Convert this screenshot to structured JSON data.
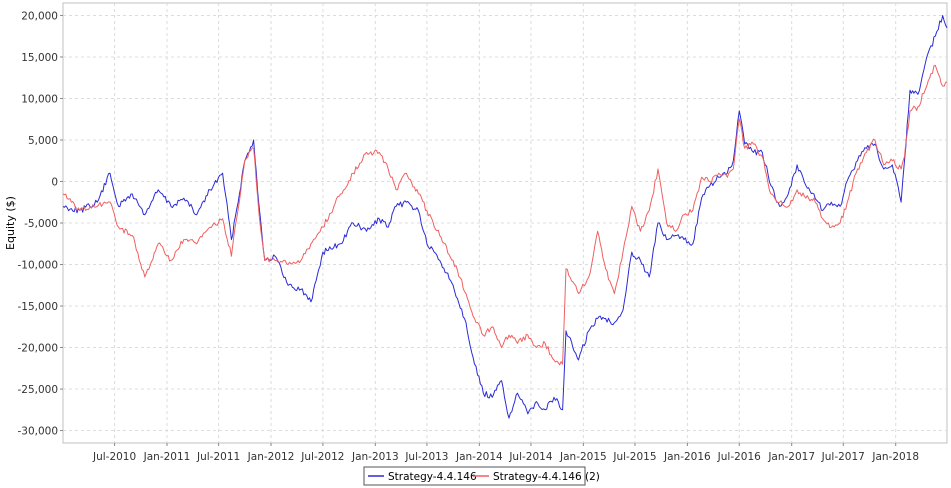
{
  "chart_data": {
    "type": "line",
    "title": "",
    "xlabel": "",
    "ylabel": "Equity ($)",
    "xlim": [
      "2010-01-01",
      "2018-06-30"
    ],
    "ylim": [
      -31500,
      21500
    ],
    "grid": true,
    "legend_position": "bottom-center",
    "y_ticks": [
      {
        "value": 20000,
        "label": "20,000"
      },
      {
        "value": 15000,
        "label": "15,000"
      },
      {
        "value": 10000,
        "label": "10,000"
      },
      {
        "value": 5000,
        "label": "5,000"
      },
      {
        "value": 0,
        "label": "0"
      },
      {
        "value": -5000,
        "label": "-5,000"
      },
      {
        "value": -10000,
        "label": "-10,000"
      },
      {
        "value": -15000,
        "label": "-15,000"
      },
      {
        "value": -20000,
        "label": "-20,000"
      },
      {
        "value": -25000,
        "label": "-25,000"
      },
      {
        "value": -30000,
        "label": "-30,000"
      }
    ],
    "x_ticks": [
      {
        "date": "2010-07-01",
        "label": "Jul-2010"
      },
      {
        "date": "2011-01-01",
        "label": "Jan-2011"
      },
      {
        "date": "2011-07-01",
        "label": "Jul-2011"
      },
      {
        "date": "2012-01-01",
        "label": "Jan-2012"
      },
      {
        "date": "2012-07-01",
        "label": "Jul-2012"
      },
      {
        "date": "2013-01-01",
        "label": "Jan-2013"
      },
      {
        "date": "2013-07-01",
        "label": "Jul-2013"
      },
      {
        "date": "2014-01-01",
        "label": "Jan-2014"
      },
      {
        "date": "2014-07-01",
        "label": "Jul-2014"
      },
      {
        "date": "2015-01-01",
        "label": "Jan-2015"
      },
      {
        "date": "2015-07-01",
        "label": "Jul-2015"
      },
      {
        "date": "2016-01-01",
        "label": "Jan-2016"
      },
      {
        "date": "2016-07-01",
        "label": "Jul-2016"
      },
      {
        "date": "2017-01-01",
        "label": "Jan-2017"
      },
      {
        "date": "2017-07-01",
        "label": "Jul-2017"
      },
      {
        "date": "2018-01-01",
        "label": "Jan-2018"
      }
    ],
    "series": [
      {
        "name": "Strategy-4.4.146",
        "color": "#2b2bd6",
        "points": [
          [
            "2010-01-01",
            -3000
          ],
          [
            "2010-03-01",
            -3500
          ],
          [
            "2010-05-01",
            -2500
          ],
          [
            "2010-06-15",
            1000
          ],
          [
            "2010-07-15",
            -3000
          ],
          [
            "2010-09-01",
            -1500
          ],
          [
            "2010-10-15",
            -4000
          ],
          [
            "2010-12-01",
            -1000
          ],
          [
            "2011-01-15",
            -3000
          ],
          [
            "2011-03-01",
            -2000
          ],
          [
            "2011-04-15",
            -4000
          ],
          [
            "2011-06-01",
            -1000
          ],
          [
            "2011-07-15",
            1000
          ],
          [
            "2011-08-15",
            -7000
          ],
          [
            "2011-10-01",
            2500
          ],
          [
            "2011-11-01",
            5000
          ],
          [
            "2011-11-20",
            -3000
          ],
          [
            "2011-12-10",
            -9500
          ],
          [
            "2012-01-15",
            -9000
          ],
          [
            "2012-03-01",
            -12500
          ],
          [
            "2012-04-15",
            -13000
          ],
          [
            "2012-05-20",
            -14500
          ],
          [
            "2012-07-01",
            -8500
          ],
          [
            "2012-09-01",
            -7500
          ],
          [
            "2012-10-15",
            -5000
          ],
          [
            "2012-12-01",
            -6000
          ],
          [
            "2013-01-15",
            -4500
          ],
          [
            "2013-02-15",
            -5500
          ],
          [
            "2013-03-15",
            -3000
          ],
          [
            "2013-04-20",
            -2500
          ],
          [
            "2013-06-01",
            -3500
          ],
          [
            "2013-07-01",
            -7500
          ],
          [
            "2013-08-15",
            -9500
          ],
          [
            "2013-10-01",
            -12500
          ],
          [
            "2013-11-15",
            -17000
          ],
          [
            "2013-12-15",
            -22000
          ],
          [
            "2014-01-15",
            -25500
          ],
          [
            "2014-02-15",
            -26000
          ],
          [
            "2014-03-20",
            -24000
          ],
          [
            "2014-04-15",
            -28500
          ],
          [
            "2014-05-15",
            -25500
          ],
          [
            "2014-06-20",
            -28000
          ],
          [
            "2014-07-20",
            -26500
          ],
          [
            "2014-08-20",
            -27500
          ],
          [
            "2014-09-20",
            -26000
          ],
          [
            "2014-10-20",
            -27500
          ],
          [
            "2014-11-01",
            -18000
          ],
          [
            "2014-12-15",
            -21500
          ],
          [
            "2015-01-20",
            -18000
          ],
          [
            "2015-02-20",
            -16500
          ],
          [
            "2015-03-20",
            -16500
          ],
          [
            "2015-04-20",
            -17000
          ],
          [
            "2015-05-20",
            -15500
          ],
          [
            "2015-06-20",
            -8500
          ],
          [
            "2015-07-20",
            -9500
          ],
          [
            "2015-08-20",
            -11500
          ],
          [
            "2015-09-20",
            -5000
          ],
          [
            "2015-10-20",
            -7000
          ],
          [
            "2015-11-20",
            -6500
          ],
          [
            "2015-12-20",
            -7000
          ],
          [
            "2016-01-20",
            -7500
          ],
          [
            "2016-02-20",
            -2000
          ],
          [
            "2016-03-20",
            -500
          ],
          [
            "2016-04-20",
            500
          ],
          [
            "2016-05-20",
            1000
          ],
          [
            "2016-06-10",
            2500
          ],
          [
            "2016-07-01",
            8500
          ],
          [
            "2016-07-20",
            4500
          ],
          [
            "2016-08-20",
            3500
          ],
          [
            "2016-09-20",
            3500
          ],
          [
            "2016-10-20",
            -500
          ],
          [
            "2016-11-20",
            -3000
          ],
          [
            "2016-12-20",
            -1500
          ],
          [
            "2017-01-20",
            2000
          ],
          [
            "2017-02-20",
            -500
          ],
          [
            "2017-03-20",
            -1500
          ],
          [
            "2017-04-20",
            -3500
          ],
          [
            "2017-05-20",
            -2500
          ],
          [
            "2017-06-20",
            -3000
          ],
          [
            "2017-07-20",
            500
          ],
          [
            "2017-08-20",
            2500
          ],
          [
            "2017-09-20",
            4000
          ],
          [
            "2017-10-20",
            4500
          ],
          [
            "2017-11-20",
            1500
          ],
          [
            "2017-12-20",
            2000
          ],
          [
            "2018-01-20",
            -2500
          ],
          [
            "2018-02-01",
            2500
          ],
          [
            "2018-02-20",
            11000
          ],
          [
            "2018-03-20",
            10500
          ],
          [
            "2018-04-20",
            15000
          ],
          [
            "2018-05-20",
            17500
          ],
          [
            "2018-06-15",
            20000
          ],
          [
            "2018-06-30",
            18500
          ]
        ]
      },
      {
        "name": "Strategy-4.4.146 (2)",
        "color": "#f06060",
        "points": [
          [
            "2010-01-01",
            -1500
          ],
          [
            "2010-03-01",
            -3500
          ],
          [
            "2010-05-01",
            -3000
          ],
          [
            "2010-06-15",
            -2500
          ],
          [
            "2010-07-15",
            -5500
          ],
          [
            "2010-09-01",
            -6500
          ],
          [
            "2010-10-15",
            -11500
          ],
          [
            "2010-12-01",
            -7500
          ],
          [
            "2011-01-15",
            -9500
          ],
          [
            "2011-03-01",
            -7000
          ],
          [
            "2011-04-15",
            -7500
          ],
          [
            "2011-06-01",
            -5500
          ],
          [
            "2011-07-15",
            -4500
          ],
          [
            "2011-08-15",
            -9000
          ],
          [
            "2011-10-01",
            2500
          ],
          [
            "2011-11-01",
            4000
          ],
          [
            "2011-11-20",
            -4000
          ],
          [
            "2011-12-10",
            -9500
          ],
          [
            "2012-01-15",
            -9500
          ],
          [
            "2012-03-01",
            -10000
          ],
          [
            "2012-04-15",
            -9500
          ],
          [
            "2012-05-20",
            -7500
          ],
          [
            "2012-07-01",
            -5500
          ],
          [
            "2012-09-01",
            -1500
          ],
          [
            "2012-10-15",
            1000
          ],
          [
            "2012-12-01",
            3500
          ],
          [
            "2013-01-15",
            3500
          ],
          [
            "2013-02-15",
            1500
          ],
          [
            "2013-03-15",
            -1000
          ],
          [
            "2013-04-20",
            1000
          ],
          [
            "2013-06-01",
            -1500
          ],
          [
            "2013-07-01",
            -3500
          ],
          [
            "2013-08-15",
            -6500
          ],
          [
            "2013-10-01",
            -9500
          ],
          [
            "2013-11-15",
            -13500
          ],
          [
            "2013-12-15",
            -16500
          ],
          [
            "2014-01-15",
            -18500
          ],
          [
            "2014-02-15",
            -17500
          ],
          [
            "2014-03-20",
            -20000
          ],
          [
            "2014-04-15",
            -18500
          ],
          [
            "2014-05-15",
            -19500
          ],
          [
            "2014-06-20",
            -18500
          ],
          [
            "2014-07-20",
            -20000
          ],
          [
            "2014-08-20",
            -19500
          ],
          [
            "2014-09-20",
            -21500
          ],
          [
            "2014-10-20",
            -22000
          ],
          [
            "2014-11-01",
            -10500
          ],
          [
            "2014-12-15",
            -13500
          ],
          [
            "2015-01-20",
            -11500
          ],
          [
            "2015-02-20",
            -6000
          ],
          [
            "2015-03-20",
            -10500
          ],
          [
            "2015-04-20",
            -13500
          ],
          [
            "2015-05-20",
            -8500
          ],
          [
            "2015-06-20",
            -3000
          ],
          [
            "2015-07-20",
            -6000
          ],
          [
            "2015-08-20",
            -3500
          ],
          [
            "2015-09-20",
            1500
          ],
          [
            "2015-10-20",
            -5000
          ],
          [
            "2015-11-20",
            -6000
          ],
          [
            "2015-12-20",
            -4000
          ],
          [
            "2016-01-20",
            -3500
          ],
          [
            "2016-02-20",
            500
          ],
          [
            "2016-03-20",
            0
          ],
          [
            "2016-04-20",
            1000
          ],
          [
            "2016-05-20",
            500
          ],
          [
            "2016-06-10",
            1500
          ],
          [
            "2016-07-01",
            7500
          ],
          [
            "2016-07-20",
            4000
          ],
          [
            "2016-08-20",
            4500
          ],
          [
            "2016-09-20",
            3000
          ],
          [
            "2016-10-20",
            -1500
          ],
          [
            "2016-11-20",
            -2500
          ],
          [
            "2016-12-20",
            -3000
          ],
          [
            "2017-01-20",
            -1000
          ],
          [
            "2017-02-20",
            -2000
          ],
          [
            "2017-03-20",
            -2000
          ],
          [
            "2017-04-20",
            -4500
          ],
          [
            "2017-05-20",
            -5500
          ],
          [
            "2017-06-20",
            -5000
          ],
          [
            "2017-07-20",
            -2000
          ],
          [
            "2017-08-20",
            1500
          ],
          [
            "2017-09-20",
            3500
          ],
          [
            "2017-10-20",
            5000
          ],
          [
            "2017-11-20",
            2000
          ],
          [
            "2017-12-20",
            2500
          ],
          [
            "2018-01-20",
            1500
          ],
          [
            "2018-02-01",
            3000
          ],
          [
            "2018-02-20",
            8500
          ],
          [
            "2018-03-20",
            9000
          ],
          [
            "2018-04-20",
            11500
          ],
          [
            "2018-05-20",
            14000
          ],
          [
            "2018-06-15",
            11500
          ],
          [
            "2018-06-30",
            12000
          ]
        ]
      }
    ]
  }
}
